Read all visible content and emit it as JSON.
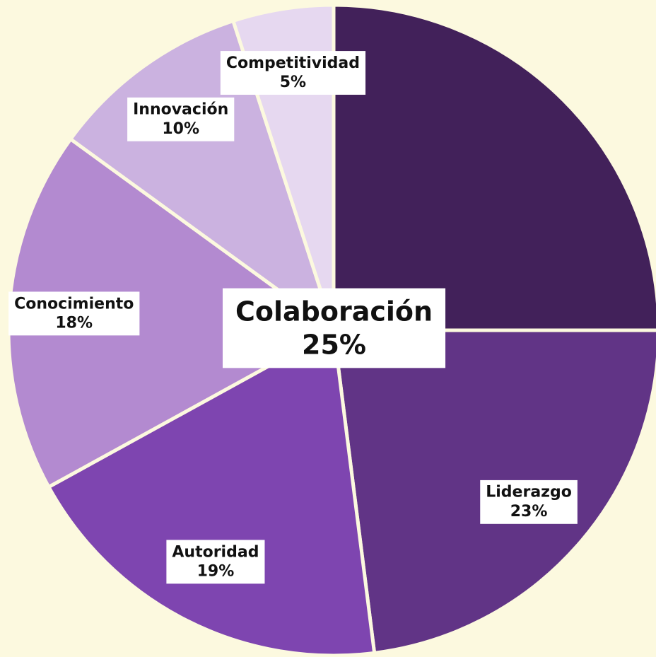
{
  "chart_data": {
    "type": "pie",
    "categories": [
      "Colaboración",
      "Liderazgo",
      "Autoridad",
      "Conocimiento",
      "Innovación",
      "Competitividad"
    ],
    "values": [
      25,
      23,
      19,
      18,
      10,
      5
    ],
    "value_labels": [
      "25%",
      "23%",
      "19%",
      "18%",
      "10%",
      "5%"
    ],
    "colors": [
      "#42215a",
      "#613486",
      "#7e45b0",
      "#b38ad0",
      "#cbb2e0",
      "#e6d8f0"
    ]
  }
}
